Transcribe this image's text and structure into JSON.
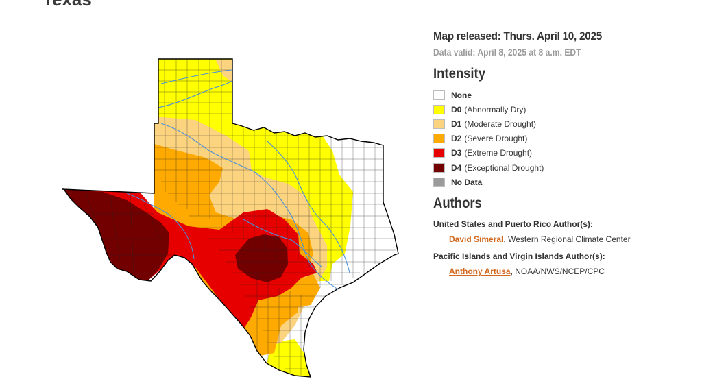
{
  "page": {
    "title": "Texas"
  },
  "map_info": {
    "released": "Map released: Thurs. April 10, 2025",
    "valid": "Data valid: April 8, 2025 at 8 a.m. EDT"
  },
  "legend": {
    "title": "Intensity",
    "items": [
      {
        "code": "None",
        "desc": "",
        "color": "#ffffff"
      },
      {
        "code": "D0",
        "desc": "(Abnormally Dry)",
        "color": "#ffff00"
      },
      {
        "code": "D1",
        "desc": "(Moderate Drought)",
        "color": "#fcd37f"
      },
      {
        "code": "D2",
        "desc": "(Severe Drought)",
        "color": "#ffaa00"
      },
      {
        "code": "D3",
        "desc": "(Extreme Drought)",
        "color": "#e60000"
      },
      {
        "code": "D4",
        "desc": "(Exceptional Drought)",
        "color": "#730000"
      },
      {
        "code": "No Data",
        "desc": "",
        "color": "#9b9b9b"
      }
    ]
  },
  "authors": {
    "title": "Authors",
    "groups": [
      {
        "title": "United States and Puerto Rico Author(s):",
        "name": "David Simeral",
        "affiliation": ", Western Regional Climate Center"
      },
      {
        "title": "Pacific Islands and Virgin Islands Author(s):",
        "name": "Anthony Artusa",
        "affiliation": ", NOAA/NWS/NCEP/CPC"
      }
    ]
  },
  "map": {
    "state": "Texas",
    "colors": {
      "none": "#ffffff",
      "d0": "#ffff00",
      "d1": "#fcd37f",
      "d2": "#ffaa00",
      "d3": "#e60000",
      "d4": "#730000",
      "river": "#4a90d9",
      "border": "#000000"
    }
  }
}
